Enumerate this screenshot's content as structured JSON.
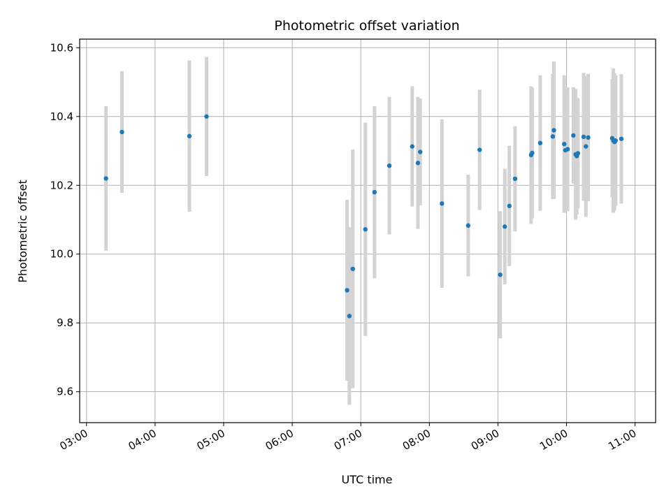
{
  "chart_data": {
    "type": "scatter",
    "title": "Photometric offset variation",
    "xlabel": "UTC time",
    "ylabel": "Photometric offset",
    "x_ticks": [
      "03:00",
      "04:00",
      "05:00",
      "06:00",
      "07:00",
      "08:00",
      "09:00",
      "10:00",
      "11:00"
    ],
    "y_ticks": [
      "9.6",
      "9.8",
      "10.0",
      "10.2",
      "10.4",
      "10.6"
    ],
    "xlim": [
      "02:54",
      "11:18"
    ],
    "ylim": [
      9.51,
      10.625
    ],
    "grid": true,
    "colors": {
      "marker": "#1f77b4",
      "errorbar": "#d3d3d3",
      "grid": "#b0b0b0"
    },
    "points": [
      {
        "x": "03:17",
        "y": 10.22,
        "yerr": 0.21
      },
      {
        "x": "03:31",
        "y": 10.355,
        "yerr": 0.177
      },
      {
        "x": "04:30",
        "y": 10.343,
        "yerr": 0.22
      },
      {
        "x": "04:45",
        "y": 10.4,
        "yerr": 0.173
      },
      {
        "x": "06:48",
        "y": 9.895,
        "yerr": 0.263
      },
      {
        "x": "06:50",
        "y": 9.82,
        "yerr": 0.258
      },
      {
        "x": "06:53",
        "y": 9.957,
        "yerr": 0.347
      },
      {
        "x": "07:04",
        "y": 10.072,
        "yerr": 0.31
      },
      {
        "x": "07:12",
        "y": 10.18,
        "yerr": 0.25
      },
      {
        "x": "07:25",
        "y": 10.257,
        "yerr": 0.2
      },
      {
        "x": "07:45",
        "y": 10.313,
        "yerr": 0.175
      },
      {
        "x": "07:50",
        "y": 10.265,
        "yerr": 0.192
      },
      {
        "x": "07:52",
        "y": 10.297,
        "yerr": 0.155
      },
      {
        "x": "08:11",
        "y": 10.147,
        "yerr": 0.245
      },
      {
        "x": "08:34",
        "y": 10.083,
        "yerr": 0.148
      },
      {
        "x": "08:44",
        "y": 10.303,
        "yerr": 0.175
      },
      {
        "x": "09:02",
        "y": 9.94,
        "yerr": 0.185
      },
      {
        "x": "09:06",
        "y": 10.08,
        "yerr": 0.168
      },
      {
        "x": "09:10",
        "y": 10.14,
        "yerr": 0.175
      },
      {
        "x": "09:15",
        "y": 10.219,
        "yerr": 0.153
      },
      {
        "x": "09:29",
        "y": 10.288,
        "yerr": 0.2
      },
      {
        "x": "09:30",
        "y": 10.294,
        "yerr": 0.19
      },
      {
        "x": "09:37",
        "y": 10.323,
        "yerr": 0.197
      },
      {
        "x": "09:48",
        "y": 10.342,
        "yerr": 0.182
      },
      {
        "x": "09:49",
        "y": 10.36,
        "yerr": 0.2
      },
      {
        "x": "09:58",
        "y": 10.32,
        "yerr": 0.2
      },
      {
        "x": "09:59",
        "y": 10.302,
        "yerr": 0.175
      },
      {
        "x": "10:01",
        "y": 10.305,
        "yerr": 0.18
      },
      {
        "x": "10:06",
        "y": 10.345,
        "yerr": 0.14
      },
      {
        "x": "10:08",
        "y": 10.29,
        "yerr": 0.19
      },
      {
        "x": "10:09",
        "y": 10.285,
        "yerr": 0.17
      },
      {
        "x": "10:10",
        "y": 10.293,
        "yerr": 0.16
      },
      {
        "x": "10:15",
        "y": 10.341,
        "yerr": 0.186
      },
      {
        "x": "10:17",
        "y": 10.313,
        "yerr": 0.205
      },
      {
        "x": "10:19",
        "y": 10.339,
        "yerr": 0.185
      },
      {
        "x": "10:40",
        "y": 10.337,
        "yerr": 0.172
      },
      {
        "x": "10:41",
        "y": 10.33,
        "yerr": 0.21
      },
      {
        "x": "10:42",
        "y": 10.326,
        "yerr": 0.2
      },
      {
        "x": "10:43",
        "y": 10.33,
        "yerr": 0.19
      },
      {
        "x": "10:48",
        "y": 10.335,
        "yerr": 0.188
      }
    ]
  }
}
